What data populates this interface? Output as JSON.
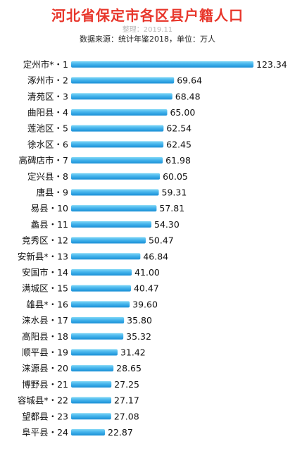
{
  "header": {
    "title": "河北省保定市各区县户籍人口",
    "credit": "整理：2019.11",
    "source": "数据来源：统计年鉴2018，单位：万人"
  },
  "colors": {
    "bar_top": "#7fd7f6",
    "bar_bottom": "#1a8fd6",
    "title": "#e8362b"
  },
  "chart_data": {
    "type": "bar",
    "orientation": "horizontal",
    "title": "河北省保定市各区县户籍人口",
    "unit": "万人",
    "categories": [
      "定州市*・1",
      "涿州市・2",
      "清苑区・3",
      "曲阳县・4",
      "莲池区・5",
      "徐水区・6",
      "高碑店市・7",
      "定兴县・8",
      "唐县・9",
      "易县・10",
      "蠡县・11",
      "竞秀区・12",
      "安新县*・13",
      "安国市・14",
      "满城区・15",
      "雄县*・16",
      "涞水县・17",
      "高阳县・18",
      "顺平县・19",
      "涞源县・20",
      "博野县・21",
      "容城县*・22",
      "望都县・23",
      "阜平县・24"
    ],
    "values": [
      123.34,
      69.64,
      68.48,
      65.0,
      62.54,
      62.45,
      61.98,
      60.05,
      59.31,
      57.81,
      54.3,
      50.47,
      46.84,
      41.0,
      40.47,
      39.6,
      35.8,
      35.32,
      31.42,
      28.65,
      27.25,
      27.17,
      27.08,
      22.87
    ],
    "value_labels": [
      "123.34",
      "69.64",
      "68.48",
      "65.00",
      "62.54",
      "62.45",
      "61.98",
      "60.05",
      "59.31",
      "57.81",
      "54.30",
      "50.47",
      "46.84",
      "41.00",
      "40.47",
      "39.60",
      "35.80",
      "35.32",
      "31.42",
      "28.65",
      "27.25",
      "27.17",
      "27.08",
      "22.87"
    ]
  }
}
